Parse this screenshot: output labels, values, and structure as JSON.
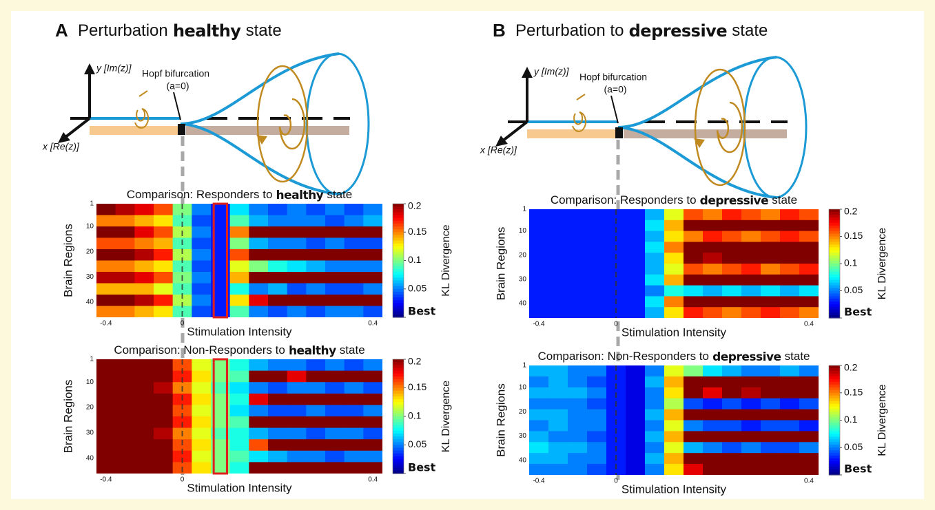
{
  "panels": [
    {
      "label": "A",
      "title": {
        "before": "Perturbation",
        "emphasis": "healthy",
        "after": "state"
      },
      "diagram": {
        "bifurcation": "Hopf bifurcation",
        "condition": "(a=0)",
        "y_axis": "y [Im(z)]",
        "x_axis": "x [Re(z)]"
      }
    },
    {
      "label": "B",
      "title": {
        "before": "Perturbation to",
        "emphasis": "depressive",
        "after": "state"
      },
      "diagram": {
        "bifurcation": "Hopf bifurcation",
        "condition": "(a=0)",
        "y_axis": "y [Im(z)]",
        "x_axis": "x [Re(z)]"
      }
    }
  ],
  "chart_data": [
    {
      "type": "heatmap",
      "title": {
        "before": "Comparison: Responders to",
        "emphasis": "healthy",
        "after": "state"
      },
      "x_label": "Stimulation Intensity",
      "y_label": "Brain Regions",
      "x": [
        -0.4,
        -0.3,
        -0.2,
        -0.1,
        0,
        0.04,
        0.08,
        0.12,
        0.16,
        0.2,
        0.24,
        0.28,
        0.32,
        0.36,
        0.4
      ],
      "xticks": [
        -0.4,
        0,
        0.4
      ],
      "ylim": [
        1,
        46
      ],
      "yticks": [
        1,
        10,
        20,
        30,
        40
      ],
      "highlight_x": 0.08,
      "colorbar": {
        "label": "KL Divergence",
        "clim": [
          0,
          0.2
        ],
        "ticks": [
          {
            "value": 0,
            "label": "Best"
          },
          0.05,
          0.1,
          0.15,
          0.2
        ]
      },
      "values": [
        [
          0.2,
          0.19,
          0.18,
          0.16,
          0.1,
          0.05,
          0.03,
          0.07,
          0.05,
          0.04,
          0.05,
          0.04,
          0.05,
          0.04,
          0.05
        ],
        [
          0.15,
          0.15,
          0.14,
          0.13,
          0.09,
          0.04,
          0.03,
          0.09,
          0.06,
          0.05,
          0.05,
          0.05,
          0.04,
          0.05,
          0.06
        ],
        [
          0.2,
          0.2,
          0.18,
          0.16,
          0.11,
          0.05,
          0.03,
          0.15,
          0.2,
          0.2,
          0.2,
          0.2,
          0.2,
          0.2,
          0.2
        ],
        [
          0.16,
          0.16,
          0.15,
          0.14,
          0.09,
          0.04,
          0.03,
          0.1,
          0.06,
          0.05,
          0.05,
          0.04,
          0.05,
          0.04,
          0.04
        ],
        [
          0.2,
          0.2,
          0.19,
          0.17,
          0.11,
          0.05,
          0.03,
          0.16,
          0.2,
          0.2,
          0.2,
          0.2,
          0.2,
          0.2,
          0.2
        ],
        [
          0.15,
          0.15,
          0.14,
          0.13,
          0.09,
          0.04,
          0.03,
          0.12,
          0.1,
          0.08,
          0.07,
          0.06,
          0.05,
          0.05,
          0.05
        ],
        [
          0.19,
          0.19,
          0.18,
          0.16,
          0.1,
          0.05,
          0.03,
          0.14,
          0.2,
          0.2,
          0.2,
          0.2,
          0.2,
          0.2,
          0.2
        ],
        [
          0.14,
          0.14,
          0.14,
          0.12,
          0.09,
          0.04,
          0.03,
          0.08,
          0.05,
          0.06,
          0.04,
          0.05,
          0.04,
          0.04,
          0.05
        ],
        [
          0.2,
          0.2,
          0.19,
          0.17,
          0.11,
          0.05,
          0.03,
          0.13,
          0.18,
          0.2,
          0.2,
          0.2,
          0.2,
          0.2,
          0.2
        ],
        [
          0.15,
          0.15,
          0.14,
          0.13,
          0.09,
          0.04,
          0.03,
          0.09,
          0.05,
          0.04,
          0.05,
          0.04,
          0.05,
          0.05,
          0.04
        ]
      ]
    },
    {
      "type": "heatmap",
      "title": {
        "before": "Comparison: Non-Responders to",
        "emphasis": "healthy",
        "after": "state"
      },
      "x_label": "Stimulation Intensity",
      "y_label": "Brain Regions",
      "x": [
        -0.4,
        -0.3,
        -0.2,
        -0.1,
        0,
        0.04,
        0.08,
        0.12,
        0.16,
        0.2,
        0.24,
        0.28,
        0.32,
        0.36,
        0.4
      ],
      "xticks": [
        -0.4,
        0,
        0.4
      ],
      "ylim": [
        1,
        46
      ],
      "yticks": [
        1,
        10,
        20,
        30,
        40
      ],
      "highlight_x": 0.08,
      "colorbar": {
        "label": "KL Divergence",
        "clim": [
          0,
          0.2
        ],
        "ticks": [
          {
            "value": 0,
            "label": "Best"
          },
          0.05,
          0.1,
          0.15,
          0.2
        ]
      },
      "values": [
        [
          0.2,
          0.2,
          0.2,
          0.2,
          0.16,
          0.12,
          0.1,
          0.08,
          0.06,
          0.05,
          0.05,
          0.04,
          0.05,
          0.04,
          0.05
        ],
        [
          0.2,
          0.2,
          0.2,
          0.2,
          0.17,
          0.13,
          0.1,
          0.09,
          0.2,
          0.2,
          0.18,
          0.2,
          0.2,
          0.2,
          0.2
        ],
        [
          0.2,
          0.2,
          0.2,
          0.19,
          0.15,
          0.12,
          0.09,
          0.07,
          0.05,
          0.04,
          0.05,
          0.05,
          0.04,
          0.05,
          0.04
        ],
        [
          0.2,
          0.2,
          0.2,
          0.2,
          0.17,
          0.13,
          0.1,
          0.08,
          0.18,
          0.2,
          0.2,
          0.2,
          0.2,
          0.2,
          0.2
        ],
        [
          0.2,
          0.2,
          0.2,
          0.2,
          0.16,
          0.12,
          0.1,
          0.07,
          0.05,
          0.04,
          0.04,
          0.05,
          0.04,
          0.04,
          0.05
        ],
        [
          0.2,
          0.2,
          0.2,
          0.2,
          0.17,
          0.13,
          0.1,
          0.09,
          0.2,
          0.2,
          0.2,
          0.2,
          0.2,
          0.2,
          0.2
        ],
        [
          0.2,
          0.2,
          0.2,
          0.19,
          0.15,
          0.12,
          0.09,
          0.08,
          0.06,
          0.05,
          0.05,
          0.04,
          0.05,
          0.05,
          0.04
        ],
        [
          0.2,
          0.2,
          0.2,
          0.2,
          0.16,
          0.13,
          0.1,
          0.08,
          0.16,
          0.2,
          0.2,
          0.2,
          0.2,
          0.2,
          0.2
        ],
        [
          0.2,
          0.2,
          0.2,
          0.2,
          0.17,
          0.12,
          0.1,
          0.09,
          0.07,
          0.06,
          0.05,
          0.05,
          0.04,
          0.05,
          0.05
        ],
        [
          0.2,
          0.2,
          0.2,
          0.2,
          0.16,
          0.13,
          0.1,
          0.08,
          0.2,
          0.2,
          0.2,
          0.2,
          0.2,
          0.2,
          0.2
        ]
      ]
    },
    {
      "type": "heatmap",
      "title": {
        "before": "Comparison: Responders to",
        "emphasis": "depressive",
        "after": "state"
      },
      "x_label": "Stimulation Intensity",
      "y_label": "Brain Regions",
      "x": [
        -0.4,
        -0.3,
        -0.2,
        -0.1,
        0,
        0.04,
        0.08,
        0.12,
        0.16,
        0.2,
        0.24,
        0.28,
        0.32,
        0.36,
        0.4
      ],
      "xticks": [
        -0.4,
        0,
        0.4
      ],
      "ylim": [
        1,
        46
      ],
      "yticks": [
        1,
        10,
        20,
        30,
        40
      ],
      "colorbar": {
        "label": "KL Divergence",
        "clim": [
          0,
          0.2
        ],
        "ticks": [
          {
            "value": 0,
            "label": "Best"
          },
          0.05,
          0.1,
          0.15,
          0.2
        ]
      },
      "values": [
        [
          0.03,
          0.03,
          0.03,
          0.03,
          0.03,
          0.03,
          0.06,
          0.12,
          0.16,
          0.15,
          0.17,
          0.16,
          0.15,
          0.17,
          0.16
        ],
        [
          0.03,
          0.03,
          0.03,
          0.03,
          0.03,
          0.03,
          0.07,
          0.14,
          0.2,
          0.2,
          0.2,
          0.2,
          0.2,
          0.2,
          0.2
        ],
        [
          0.03,
          0.03,
          0.03,
          0.03,
          0.03,
          0.03,
          0.06,
          0.13,
          0.15,
          0.17,
          0.16,
          0.15,
          0.16,
          0.17,
          0.16
        ],
        [
          0.03,
          0.03,
          0.03,
          0.03,
          0.03,
          0.03,
          0.07,
          0.15,
          0.2,
          0.2,
          0.2,
          0.2,
          0.2,
          0.2,
          0.2
        ],
        [
          0.03,
          0.03,
          0.03,
          0.03,
          0.03,
          0.03,
          0.06,
          0.13,
          0.2,
          0.19,
          0.2,
          0.2,
          0.2,
          0.2,
          0.2
        ],
        [
          0.03,
          0.03,
          0.03,
          0.03,
          0.03,
          0.03,
          0.06,
          0.12,
          0.16,
          0.15,
          0.16,
          0.17,
          0.15,
          0.16,
          0.17
        ],
        [
          0.03,
          0.03,
          0.03,
          0.03,
          0.03,
          0.03,
          0.07,
          0.14,
          0.2,
          0.2,
          0.2,
          0.2,
          0.2,
          0.2,
          0.2
        ],
        [
          0.03,
          0.03,
          0.03,
          0.03,
          0.03,
          0.03,
          0.05,
          0.08,
          0.07,
          0.06,
          0.07,
          0.06,
          0.07,
          0.06,
          0.07
        ],
        [
          0.03,
          0.03,
          0.03,
          0.03,
          0.03,
          0.03,
          0.07,
          0.15,
          0.2,
          0.2,
          0.2,
          0.2,
          0.2,
          0.2,
          0.2
        ],
        [
          0.03,
          0.03,
          0.03,
          0.03,
          0.03,
          0.03,
          0.06,
          0.13,
          0.17,
          0.16,
          0.15,
          0.16,
          0.17,
          0.16,
          0.15
        ]
      ]
    },
    {
      "type": "heatmap",
      "title": {
        "before": "Comparison: Non-Responders to",
        "emphasis": "depressive",
        "after": "state"
      },
      "x_label": "Stimulation Intensity",
      "y_label": "Brain Regions",
      "x": [
        -0.4,
        -0.3,
        -0.2,
        -0.1,
        0,
        0.04,
        0.08,
        0.12,
        0.16,
        0.2,
        0.24,
        0.28,
        0.32,
        0.36,
        0.4
      ],
      "xticks": [
        -0.4,
        0,
        0.4
      ],
      "ylim": [
        1,
        46
      ],
      "yticks": [
        1,
        10,
        20,
        30,
        40
      ],
      "colorbar": {
        "label": "KL Divergence",
        "clim": [
          0,
          0.2
        ],
        "ticks": [
          {
            "value": 0,
            "label": "Best"
          },
          0.05,
          0.1,
          0.15,
          0.2
        ]
      },
      "values": [
        [
          0.06,
          0.06,
          0.05,
          0.05,
          0.03,
          0.02,
          0.05,
          0.12,
          0.1,
          0.07,
          0.06,
          0.05,
          0.05,
          0.06,
          0.05
        ],
        [
          0.05,
          0.06,
          0.05,
          0.04,
          0.03,
          0.02,
          0.06,
          0.14,
          0.2,
          0.2,
          0.2,
          0.2,
          0.2,
          0.2,
          0.2
        ],
        [
          0.06,
          0.06,
          0.06,
          0.05,
          0.03,
          0.02,
          0.05,
          0.13,
          0.2,
          0.18,
          0.2,
          0.19,
          0.2,
          0.2,
          0.2
        ],
        [
          0.05,
          0.05,
          0.05,
          0.04,
          0.03,
          0.02,
          0.05,
          0.11,
          0.04,
          0.03,
          0.04,
          0.03,
          0.04,
          0.03,
          0.04
        ],
        [
          0.06,
          0.06,
          0.05,
          0.05,
          0.03,
          0.02,
          0.06,
          0.14,
          0.2,
          0.2,
          0.2,
          0.2,
          0.2,
          0.2,
          0.2
        ],
        [
          0.05,
          0.06,
          0.05,
          0.05,
          0.03,
          0.02,
          0.05,
          0.12,
          0.05,
          0.04,
          0.04,
          0.03,
          0.04,
          0.04,
          0.03
        ],
        [
          0.06,
          0.05,
          0.05,
          0.04,
          0.03,
          0.02,
          0.06,
          0.14,
          0.2,
          0.2,
          0.2,
          0.2,
          0.2,
          0.2,
          0.2
        ],
        [
          0.07,
          0.06,
          0.06,
          0.05,
          0.03,
          0.02,
          0.05,
          0.12,
          0.06,
          0.05,
          0.04,
          0.05,
          0.04,
          0.04,
          0.05
        ],
        [
          0.06,
          0.06,
          0.05,
          0.05,
          0.03,
          0.02,
          0.06,
          0.14,
          0.2,
          0.2,
          0.2,
          0.2,
          0.2,
          0.2,
          0.2
        ],
        [
          0.05,
          0.05,
          0.05,
          0.04,
          0.03,
          0.02,
          0.05,
          0.13,
          0.18,
          0.2,
          0.2,
          0.2,
          0.2,
          0.2,
          0.2
        ]
      ]
    }
  ]
}
